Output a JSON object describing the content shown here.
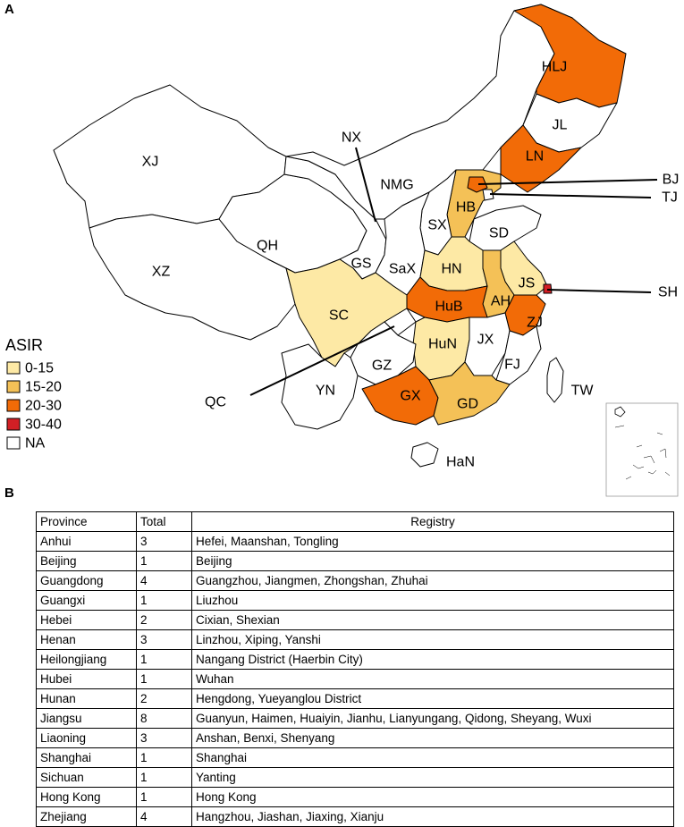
{
  "panels": {
    "a": "A",
    "b": "B"
  },
  "legend": {
    "title": "ASIR",
    "items": [
      {
        "label": "0-15",
        "color": "#FDE9A5"
      },
      {
        "label": "15-20",
        "color": "#F4C157"
      },
      {
        "label": "20-30",
        "color": "#F26B07"
      },
      {
        "label": "30-40",
        "color": "#D21F25"
      },
      {
        "label": "NA",
        "color": "#FFFFFF"
      }
    ]
  },
  "map_labels": {
    "HLJ": "HLJ",
    "JL": "JL",
    "LN": "LN",
    "BJ": "BJ",
    "TJ": "TJ",
    "NX": "NX",
    "XJ": "XJ",
    "NMG": "NMG",
    "HB": "HB",
    "SX": "SX",
    "SD": "SD",
    "QH": "QH",
    "XZ": "XZ",
    "GS": "GS",
    "SaX": "SaX",
    "HN": "HN",
    "JS": "JS",
    "SH": "SH",
    "AH": "AH",
    "SC": "SC",
    "HuB": "HuB",
    "ZJ": "ZJ",
    "HuN": "HuN",
    "JX": "JX",
    "FJ": "FJ",
    "GZ": "GZ",
    "QC": "QC",
    "YN": "YN",
    "GX": "GX",
    "GD": "GD",
    "TW": "TW",
    "HaN": "HaN"
  },
  "table": {
    "headers": [
      "Province",
      "Total",
      "Registry"
    ],
    "rows": [
      [
        "Anhui",
        "3",
        "Hefei, Maanshan, Tongling"
      ],
      [
        "Beijing",
        "1",
        "Beijing"
      ],
      [
        "Guangdong",
        "4",
        "Guangzhou, Jiangmen, Zhongshan, Zhuhai"
      ],
      [
        "Guangxi",
        "1",
        "Liuzhou"
      ],
      [
        "Hebei",
        "2",
        "Cixian, Shexian"
      ],
      [
        "Henan",
        "3",
        "Linzhou, Xiping, Yanshi"
      ],
      [
        "Heilongjiang",
        "1",
        "Nangang District (Haerbin City)"
      ],
      [
        "Hubei",
        "1",
        "Wuhan"
      ],
      [
        "Hunan",
        "2",
        "Hengdong, Yueyanglou District"
      ],
      [
        "Jiangsu",
        "8",
        "Guanyun, Haimen, Huaiyin, Jianhu, Lianyungang, Qidong, Sheyang, Wuxi"
      ],
      [
        "Liaoning",
        "3",
        "Anshan, Benxi, Shenyang"
      ],
      [
        "Shanghai",
        "1",
        "Shanghai"
      ],
      [
        "Sichuan",
        "1",
        "Yanting"
      ],
      [
        "Hong Kong",
        "1",
        "Hong Kong"
      ],
      [
        "Zhejiang",
        "4",
        "Hangzhou, Jiashan, Jiaxing, Xianju"
      ]
    ]
  }
}
